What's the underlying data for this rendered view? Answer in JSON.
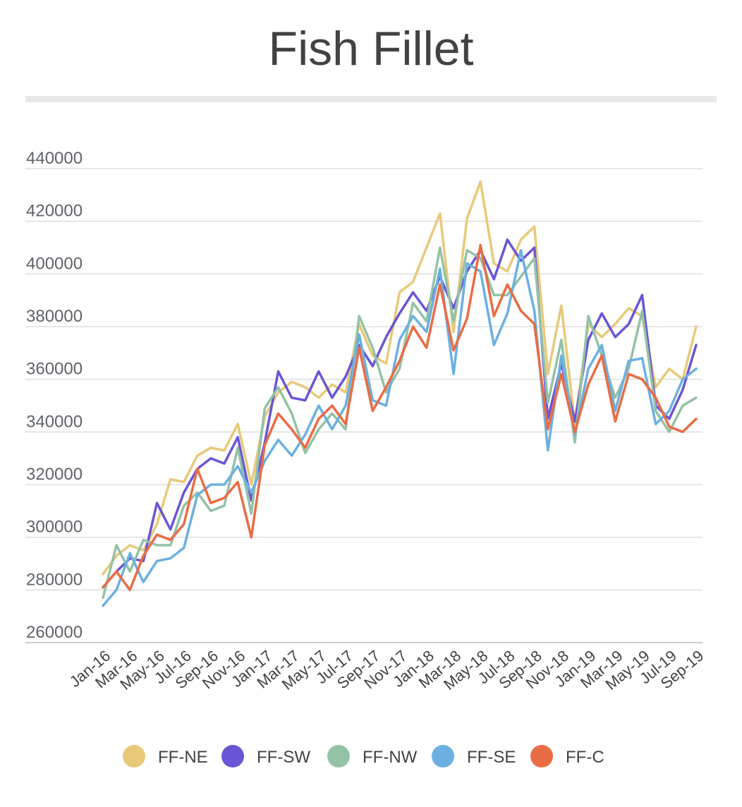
{
  "chart_data": {
    "type": "line",
    "title": "Fish Fillet",
    "xlabel": "",
    "ylabel": "",
    "ylim": [
      260000,
      440000
    ],
    "yticks": [
      260000,
      280000,
      300000,
      320000,
      340000,
      360000,
      380000,
      400000,
      420000,
      440000
    ],
    "grid": true,
    "legend_position": "bottom",
    "x": [
      "Jan-16",
      "Feb-16",
      "Mar-16",
      "Apr-16",
      "May-16",
      "Jun-16",
      "Jul-16",
      "Aug-16",
      "Sep-16",
      "Oct-16",
      "Nov-16",
      "Dec-16",
      "Jan-17",
      "Feb-17",
      "Mar-17",
      "Apr-17",
      "May-17",
      "Jun-17",
      "Jul-17",
      "Aug-17",
      "Sep-17",
      "Oct-17",
      "Nov-17",
      "Dec-17",
      "Jan-18",
      "Feb-18",
      "Mar-18",
      "Apr-18",
      "May-18",
      "Jun-18",
      "Jul-18",
      "Aug-18",
      "Sep-18",
      "Oct-18",
      "Nov-18",
      "Dec-18",
      "Jan-19",
      "Feb-19",
      "Mar-19",
      "Apr-19",
      "May-19",
      "Jun-19",
      "Jul-19",
      "Aug-19",
      "Sep-19"
    ],
    "x_tick_labels": [
      "Jan-16",
      "Mar-16",
      "May-16",
      "Jul-16",
      "Sep-16",
      "Nov-16",
      "Jan-17",
      "Mar-17",
      "May-17",
      "Jul-17",
      "Sep-17",
      "Nov-17",
      "Jan-18",
      "Mar-18",
      "May-18",
      "Jul-18",
      "Sep-18",
      "Nov-18",
      "Jan-19",
      "Mar-19",
      "May-19",
      "Jul-19",
      "Sep-19"
    ],
    "series": [
      {
        "name": "FF-NE",
        "color": "#e8c97a",
        "values": [
          286000,
          293000,
          297000,
          295000,
          305000,
          322000,
          321000,
          331000,
          334000,
          333000,
          343000,
          320000,
          346000,
          355000,
          359000,
          357000,
          353000,
          358000,
          355000,
          381000,
          369000,
          366000,
          393000,
          397000,
          410000,
          423000,
          378000,
          421000,
          435000,
          404000,
          401000,
          413000,
          418000,
          362000,
          388000,
          343000,
          381000,
          376000,
          381000,
          387000,
          384000,
          357000,
          364000,
          360000,
          380000
        ]
      },
      {
        "name": "FF-SW",
        "color": "#6a55d6",
        "values": [
          281000,
          287000,
          292000,
          291000,
          313000,
          303000,
          317000,
          326000,
          330000,
          328000,
          338000,
          314000,
          336000,
          363000,
          353000,
          352000,
          363000,
          353000,
          361000,
          373000,
          365000,
          376000,
          385000,
          393000,
          386000,
          399000,
          387000,
          401000,
          409000,
          398000,
          413000,
          405000,
          410000,
          345000,
          366000,
          344000,
          375000,
          385000,
          376000,
          381000,
          392000,
          350000,
          345000,
          356000,
          373000
        ]
      },
      {
        "name": "FF-NW",
        "color": "#93c2a6",
        "values": [
          277000,
          297000,
          287000,
          299000,
          297000,
          297000,
          312000,
          317000,
          310000,
          312000,
          334000,
          309000,
          349000,
          357000,
          347000,
          332000,
          341000,
          347000,
          341000,
          384000,
          372000,
          355000,
          364000,
          389000,
          382000,
          410000,
          382000,
          409000,
          406000,
          392000,
          392000,
          399000,
          406000,
          351000,
          375000,
          336000,
          384000,
          369000,
          353000,
          364000,
          386000,
          348000,
          340000,
          350000,
          353000
        ]
      },
      {
        "name": "FF-SE",
        "color": "#6cb0e1",
        "values": [
          274000,
          280000,
          294000,
          283000,
          291000,
          292000,
          296000,
          316000,
          320000,
          320000,
          327000,
          317000,
          329000,
          337000,
          331000,
          339000,
          350000,
          341000,
          350000,
          377000,
          352000,
          350000,
          375000,
          384000,
          378000,
          402000,
          362000,
          404000,
          401000,
          373000,
          385000,
          409000,
          386000,
          333000,
          369000,
          339000,
          364000,
          373000,
          348000,
          367000,
          368000,
          343000,
          348000,
          360000,
          364000
        ]
      },
      {
        "name": "FF-C",
        "color": "#ea6c45",
        "values": [
          281000,
          287000,
          280000,
          293000,
          301000,
          299000,
          305000,
          326000,
          313000,
          315000,
          321000,
          300000,
          335000,
          347000,
          341000,
          334000,
          345000,
          350000,
          343000,
          372000,
          348000,
          357000,
          367000,
          380000,
          372000,
          396000,
          371000,
          383000,
          411000,
          384000,
          396000,
          386000,
          381000,
          341000,
          362000,
          340000,
          358000,
          369000,
          344000,
          362000,
          360000,
          353000,
          342000,
          340000,
          345000
        ]
      }
    ]
  }
}
